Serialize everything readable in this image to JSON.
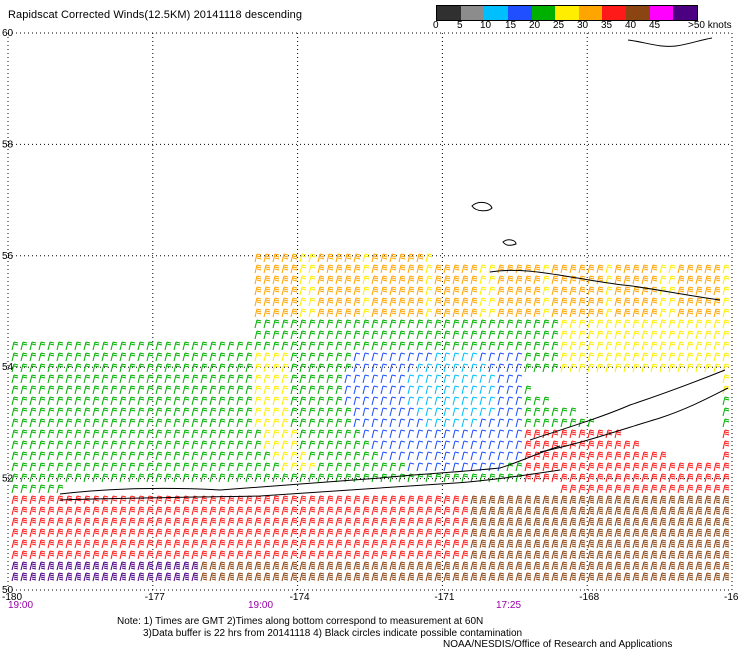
{
  "title": "Rapidscat Corrected Winds(12.5KM) 20141118 descending",
  "scale": {
    "labels": [
      "0",
      "5",
      "10",
      "15",
      "20",
      "25",
      "30",
      "35",
      "40",
      "45",
      ">50 knots"
    ],
    "colors": [
      "#303030",
      "#8c8c8c",
      "#00bfff",
      "#1f4fff",
      "#00b000",
      "#ffee00",
      "#ffa500",
      "#ff1a1a",
      "#8b4513",
      "#ff00ff",
      "#4b0082"
    ]
  },
  "chart_data": {
    "type": "wind-barb-map",
    "x_label_values": [
      "-180",
      "-177",
      "-174",
      "-171",
      "-168",
      "-16"
    ],
    "y_label_values": [
      "50",
      "52",
      "54",
      "56",
      "58",
      "60"
    ],
    "xlim": [
      -180,
      -165
    ],
    "ylim": [
      50,
      60
    ],
    "grid": true,
    "units": "knots",
    "time_labels": [
      "19:00",
      "19:00",
      "17:25"
    ]
  },
  "notes": {
    "line1": "Note: 1) Times are GMT 2)Times along bottom correspond to measurement at 60N",
    "line2": "3)Data buffer is 22 hrs from 20141118 4) Black circles indicate possible contamination",
    "credit": "NOAA/NESDIS/Office of Research and Applications"
  }
}
